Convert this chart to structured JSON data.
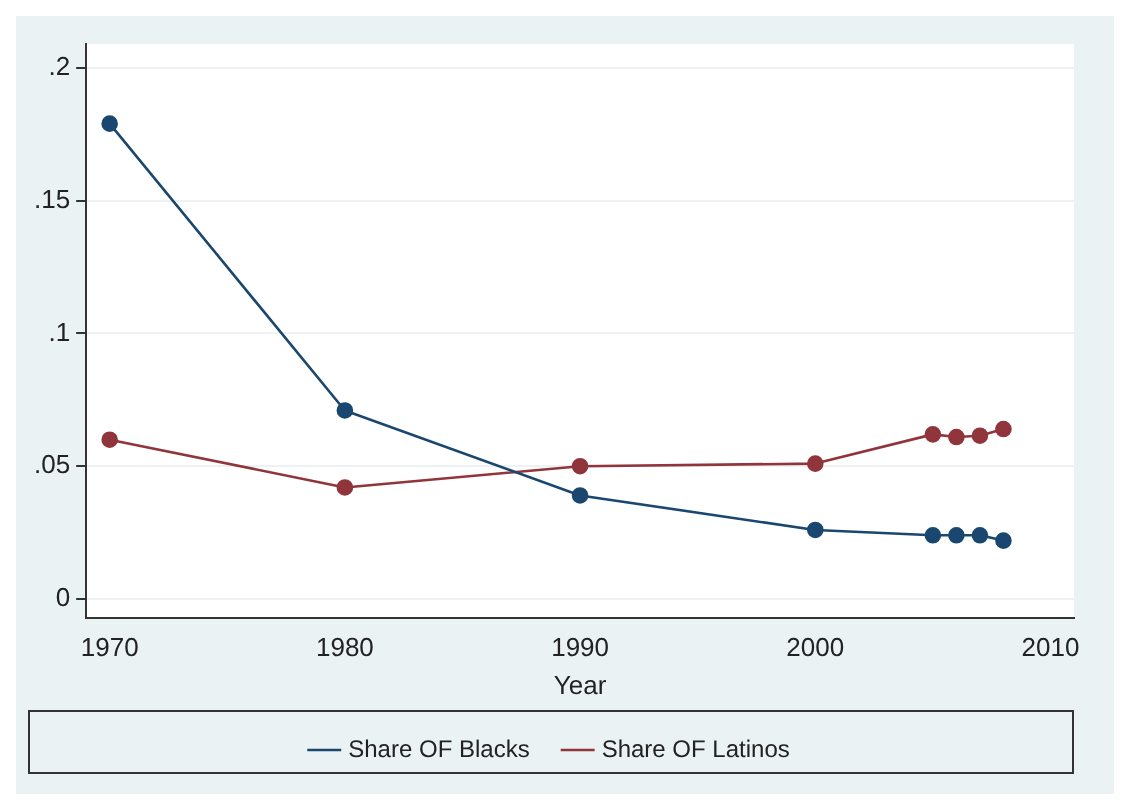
{
  "chart_data": {
    "type": "line",
    "xlabel": "Year",
    "x": [
      1970,
      1980,
      1990,
      2000,
      2005,
      2006,
      2007,
      2008
    ],
    "series": [
      {
        "name": "Share OF Blacks",
        "color": "#1a476f",
        "values": [
          0.179,
          0.071,
          0.039,
          0.026,
          0.024,
          0.024,
          0.024,
          0.022
        ]
      },
      {
        "name": "Share OF Latinos",
        "color": "#90353b",
        "values": [
          0.06,
          0.042,
          0.05,
          0.051,
          0.062,
          0.061,
          0.0615,
          0.064
        ]
      }
    ],
    "xlim": [
      1969,
      2011
    ],
    "xticks": [
      1970,
      1980,
      1990,
      2000,
      2010
    ],
    "ylim": [
      -0.007,
      0.209
    ],
    "yticks": [
      {
        "value": 0,
        "label": "0"
      },
      {
        "value": 0.05,
        "label": ".05"
      },
      {
        "value": 0.1,
        "label": ".1"
      },
      {
        "value": 0.15,
        "label": ".15"
      },
      {
        "value": 0.2,
        "label": ".2"
      }
    ],
    "grid": "y",
    "legend": "bottom",
    "marker": "circle",
    "line_style": "solid"
  }
}
